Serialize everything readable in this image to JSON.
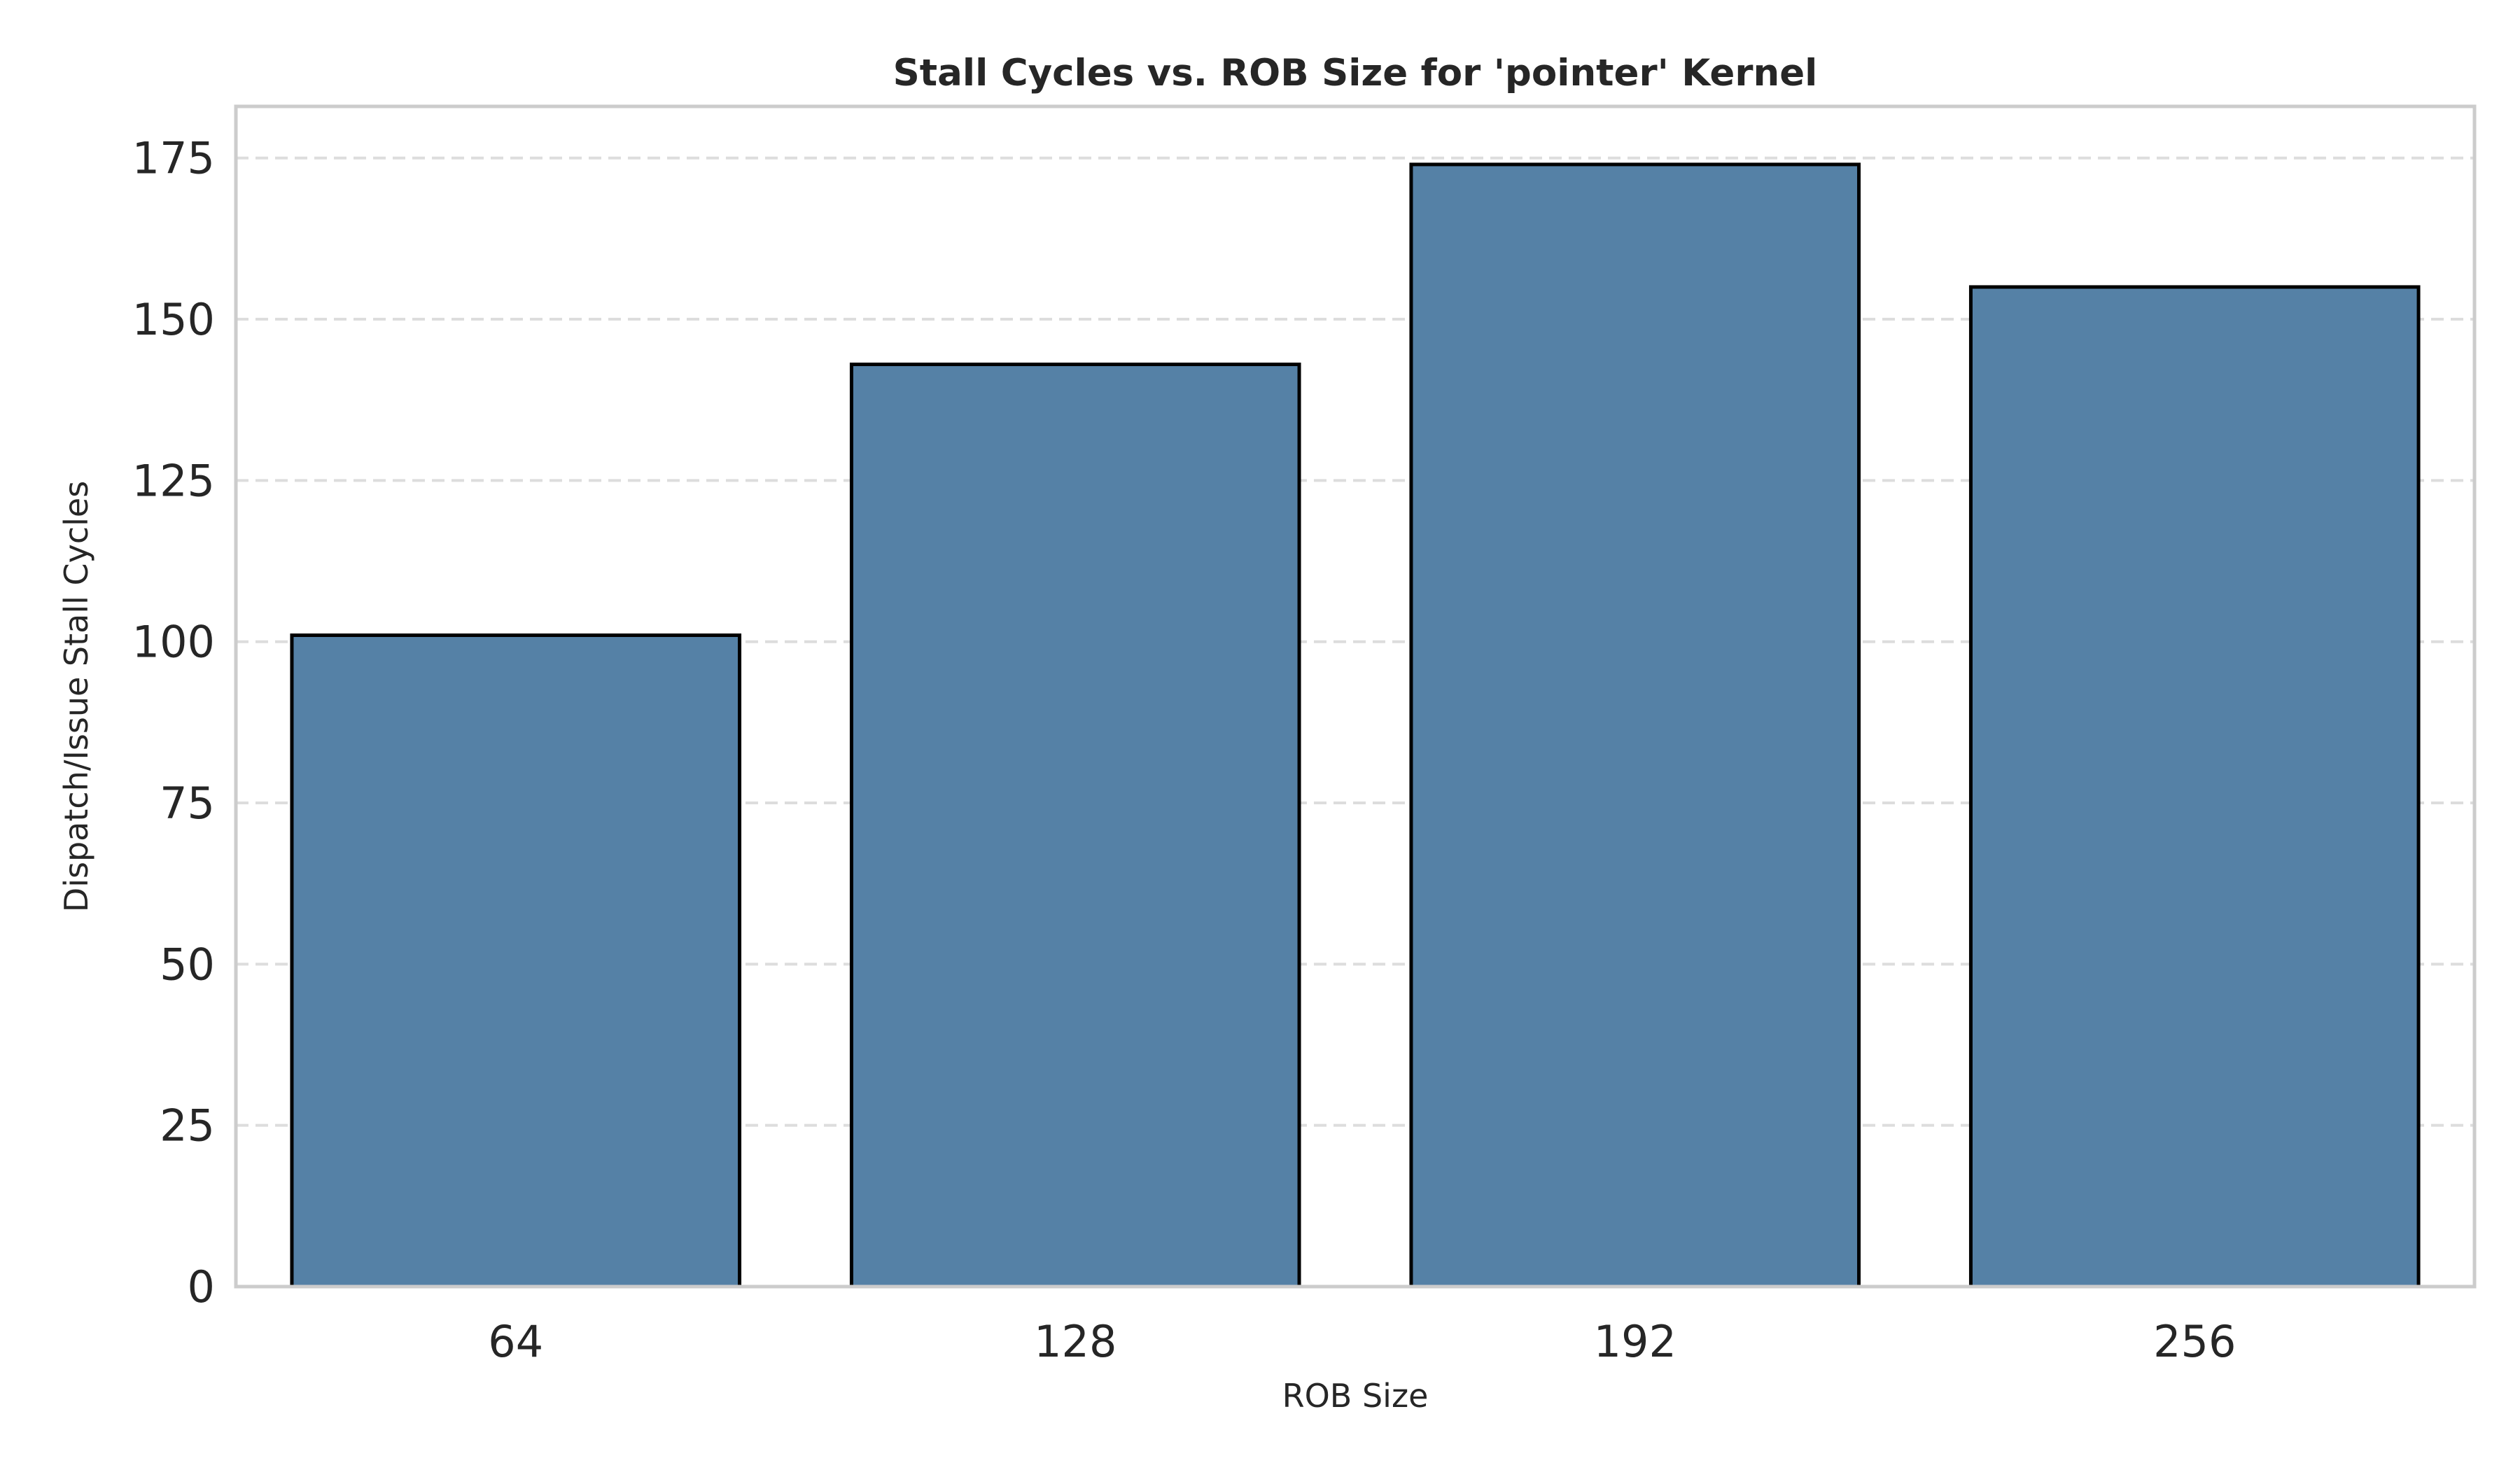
{
  "chart_data": {
    "type": "bar",
    "title": "Stall Cycles vs. ROB Size for 'pointer' Kernel",
    "xlabel": "ROB Size",
    "ylabel": "Dispatch/Issue Stall Cycles",
    "categories": [
      "64",
      "128",
      "192",
      "256"
    ],
    "values": [
      101,
      143,
      174,
      155
    ],
    "ylim": [
      0,
      183
    ],
    "yticks": [
      0,
      25,
      50,
      75,
      100,
      125,
      150,
      175
    ],
    "grid": "y-dashed",
    "bar_color": "#5581a6",
    "edge_color": "#000000"
  }
}
